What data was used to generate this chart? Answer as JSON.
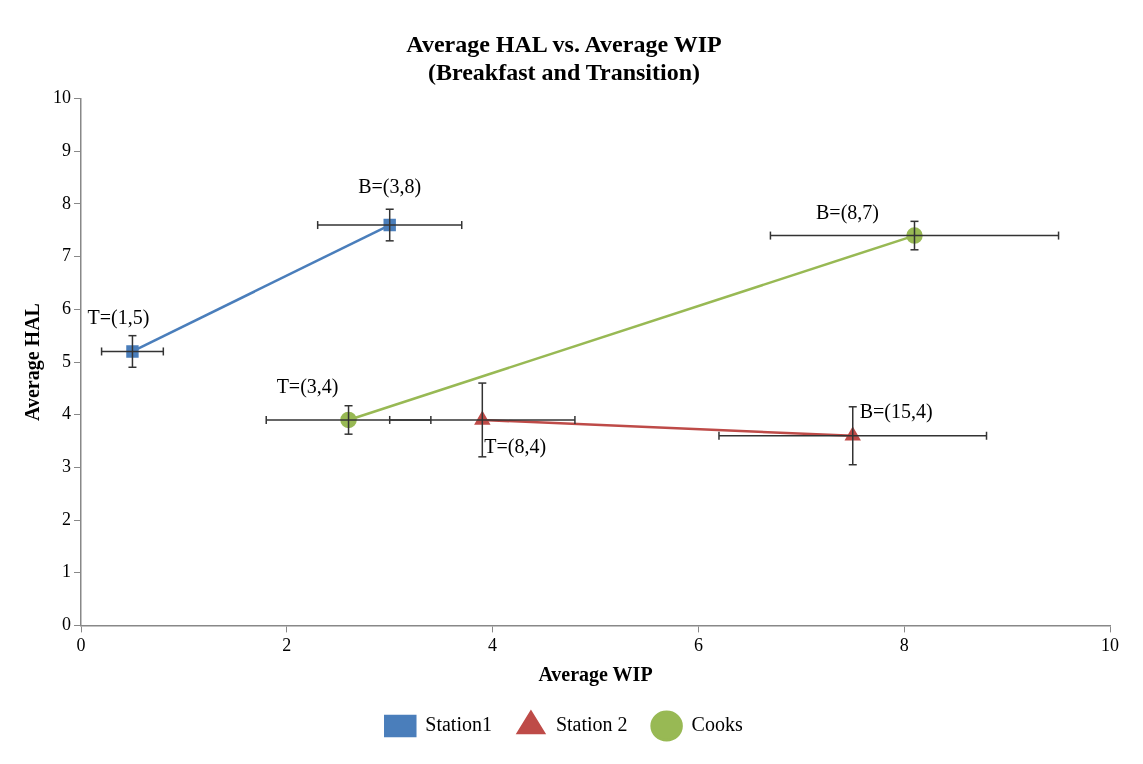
{
  "chart_data": {
    "type": "line",
    "title": "Average HAL vs. Average WIP\n(Breakfast and Transition)",
    "xlabel": "Average WIP",
    "ylabel": "Average HAL",
    "xlim": [
      0,
      10
    ],
    "xticks": [
      0,
      2,
      4,
      6,
      8,
      10
    ],
    "ylim": [
      0,
      10
    ],
    "yticks": [
      0,
      1,
      2,
      3,
      4,
      5,
      6,
      7,
      8,
      9,
      10
    ],
    "grid": false,
    "legend": "bottom",
    "series": [
      {
        "name": "Station1",
        "color": "#4a7ebb",
        "marker": "square",
        "x": [
          0.5,
          3.0
        ],
        "values": [
          5.2,
          7.6
        ],
        "errors": [
          0.3,
          0.3
        ],
        "xerrors": [
          0.3,
          0.7
        ]
      },
      {
        "name": "Station 2",
        "color": "#be4b48",
        "marker": "triangle",
        "x": [
          3.9,
          7.5
        ],
        "values": [
          3.9,
          3.6
        ],
        "errors": [
          0.7,
          0.55
        ],
        "xerrors": [
          0.9,
          1.3
        ]
      },
      {
        "name": "Cooks",
        "color": "#98b954",
        "marker": "circle",
        "x": [
          2.6,
          8.1
        ],
        "values": [
          3.9,
          7.4
        ],
        "errors": [
          0.27,
          0.27
        ],
        "xerrors": [
          0.8,
          1.4
        ]
      }
    ],
    "annotations": [
      {
        "text": "T=(1,5)",
        "x": 0.5,
        "y": 5.2
      },
      {
        "text": "B=(3,8)",
        "x": 3.0,
        "y": 7.6
      },
      {
        "text": "T=(8,4)",
        "x": 3.9,
        "y": 3.9
      },
      {
        "text": "B=(15,4)",
        "x": 7.5,
        "y": 3.6
      },
      {
        "text": "T=(3,4)",
        "x": 2.6,
        "y": 3.9
      },
      {
        "text": "B=(8,7)",
        "x": 8.1,
        "y": 7.4
      }
    ]
  }
}
